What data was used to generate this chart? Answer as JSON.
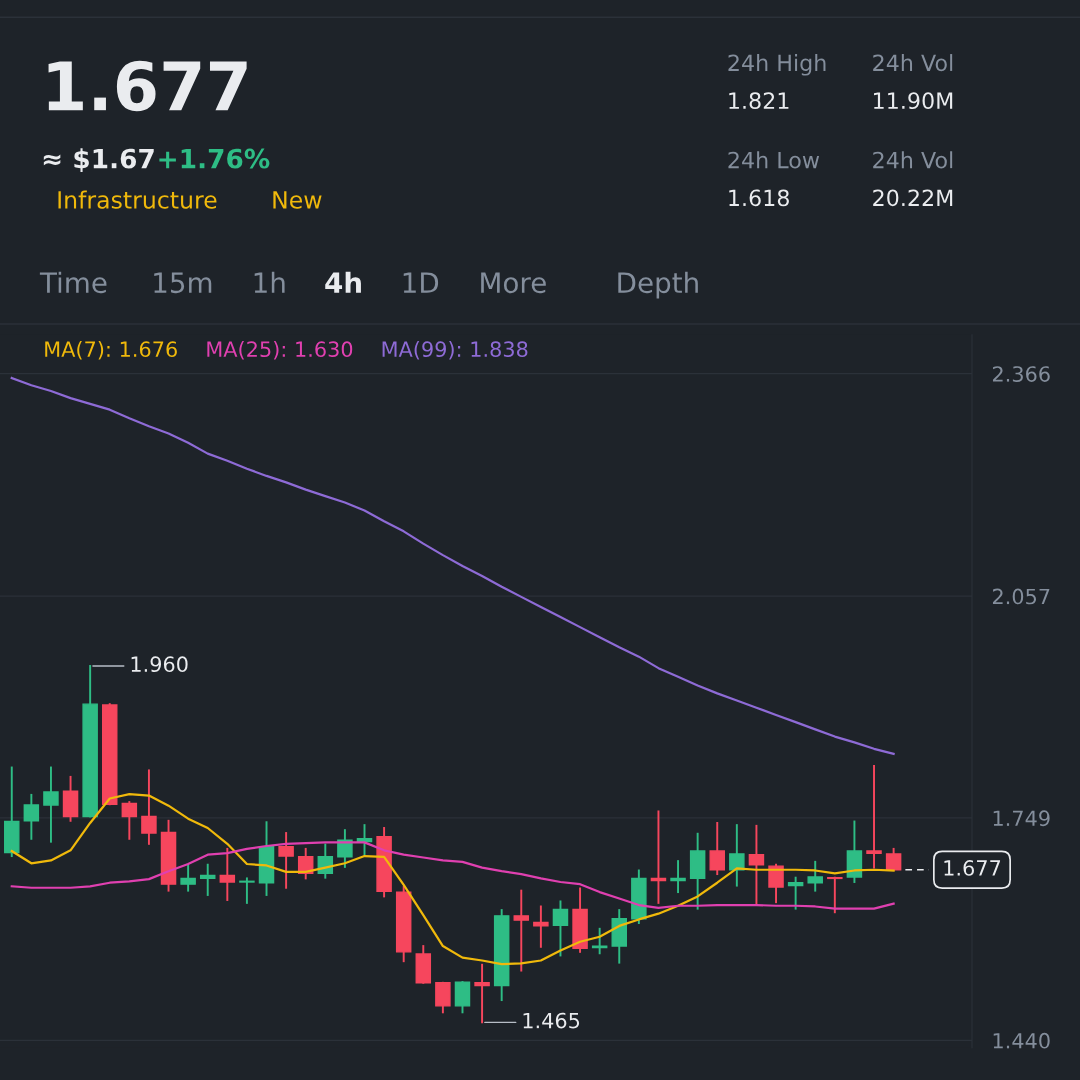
{
  "chart_data": {
    "type": "candlestick",
    "title": "1.677",
    "annotations": [
      "≈ $1.67",
      "+1.76%",
      "Infrastructure",
      "New",
      "24h High",
      "1.821",
      "24h Vol",
      "11.90M",
      "24h Low",
      "1.618",
      "24h Vol",
      "20.22M",
      "Time",
      "15m",
      "1h",
      "4h",
      "1D",
      "More",
      "Depth",
      "1.960",
      "1.465"
    ],
    "categories": [
      null,
      null,
      null,
      null,
      null,
      null,
      null,
      null,
      null,
      null,
      null,
      null,
      null,
      null,
      null,
      null,
      null,
      null,
      null,
      null,
      null,
      null,
      null,
      null,
      null,
      null,
      null,
      null,
      null,
      null,
      null,
      null,
      null,
      null,
      null,
      null,
      null,
      null,
      null,
      null,
      null,
      null,
      null,
      null,
      null,
      null
    ],
    "ohlc": [
      [
        1.701,
        1.819,
        1.696,
        1.744
      ],
      [
        1.745,
        1.781,
        1.72,
        1.767
      ],
      [
        1.767,
        1.819,
        1.716,
        1.785
      ],
      [
        1.786,
        1.806,
        1.745,
        1.751
      ],
      [
        1.751,
        1.96,
        1.751,
        1.907
      ],
      [
        1.906,
        1.907,
        1.768,
        1.768
      ],
      [
        1.769,
        1.771,
        1.72,
        1.751
      ],
      [
        1.751,
        1.815,
        1.713,
        1.728
      ],
      [
        1.729,
        1.745,
        1.648,
        1.657
      ],
      [
        1.657,
        1.684,
        1.648,
        1.665
      ],
      [
        1.665,
        1.684,
        1.642,
        1.669
      ],
      [
        1.669,
        1.706,
        1.635,
        1.66
      ],
      [
        1.66,
        1.665,
        1.631,
        1.661
      ],
      [
        1.659,
        1.743,
        1.642,
        1.709
      ],
      [
        1.709,
        1.728,
        1.652,
        1.696
      ],
      [
        1.695,
        1.706,
        1.665,
        1.672
      ],
      [
        1.672,
        1.712,
        1.666,
        1.695
      ],
      [
        1.695,
        1.732,
        1.681,
        1.718
      ],
      [
        1.716,
        1.739,
        1.698,
        1.72
      ],
      [
        1.723,
        1.735,
        1.64,
        1.647
      ],
      [
        1.646,
        1.653,
        1.55,
        1.563
      ],
      [
        1.56,
        1.571,
        1.52,
        1.52
      ],
      [
        1.52,
        1.52,
        1.479,
        1.488
      ],
      [
        1.488,
        1.521,
        1.479,
        1.521
      ],
      [
        1.52,
        1.545,
        1.465,
        1.516
      ],
      [
        1.516,
        1.621,
        1.496,
        1.613
      ],
      [
        1.613,
        1.648,
        1.537,
        1.607
      ],
      [
        1.604,
        1.626,
        1.57,
        1.599
      ],
      [
        1.6,
        1.633,
        1.558,
        1.622
      ],
      [
        1.622,
        1.651,
        1.563,
        1.568
      ],
      [
        1.569,
        1.595,
        1.561,
        1.571
      ],
      [
        1.571,
        1.621,
        1.548,
        1.609
      ],
      [
        1.609,
        1.676,
        1.603,
        1.665
      ],
      [
        1.665,
        1.758,
        1.631,
        1.662
      ],
      [
        1.662,
        1.689,
        1.646,
        1.665
      ],
      [
        1.665,
        1.727,
        1.623,
        1.703
      ],
      [
        1.703,
        1.742,
        1.671,
        1.677
      ],
      [
        1.677,
        1.739,
        1.655,
        1.699
      ],
      [
        1.698,
        1.738,
        1.628,
        1.684
      ],
      [
        1.682,
        1.684,
        1.632,
        1.653
      ],
      [
        1.655,
        1.666,
        1.623,
        1.659
      ],
      [
        1.659,
        1.688,
        1.648,
        1.667
      ],
      [
        1.666,
        1.666,
        1.618,
        1.665
      ],
      [
        1.667,
        1.744,
        1.66,
        1.703
      ],
      [
        1.703,
        1.821,
        1.68,
        1.7
      ],
      [
        1.699,
        1.706,
        1.677,
        1.677
      ]
    ],
    "colors": [
      "#2ebd85",
      "#2ebd85",
      "#2ebd85",
      "#f6465d",
      "#2ebd85",
      "#f6465d",
      "#f6465d",
      "#f6465d",
      "#f6465d",
      "#2ebd85",
      "#2ebd85",
      "#f6465d",
      "#2ebd85",
      "#2ebd85",
      "#f6465d",
      "#f6465d",
      "#2ebd85",
      "#2ebd85",
      "#2ebd85",
      "#f6465d",
      "#f6465d",
      "#f6465d",
      "#f6465d",
      "#2ebd85",
      "#f6465d",
      "#2ebd85",
      "#f6465d",
      "#f6465d",
      "#2ebd85",
      "#f6465d",
      "#2ebd85",
      "#2ebd85",
      "#2ebd85",
      "#f6465d",
      "#2ebd85",
      "#2ebd85",
      "#f6465d",
      "#2ebd85",
      "#f6465d",
      "#f6465d",
      "#2ebd85",
      "#2ebd85",
      "#f6465d",
      "#2ebd85",
      "#f6465d",
      "#f6465d"
    ],
    "series": [
      {
        "type": "line",
        "name": "MA(7): 1.676",
        "color": "#f0b90b",
        "values": [
          1.703,
          1.686,
          1.69,
          1.704,
          1.742,
          1.776,
          1.782,
          1.78,
          1.766,
          1.748,
          1.735,
          1.713,
          1.685,
          1.683,
          1.674,
          1.674,
          1.68,
          1.686,
          1.696,
          1.695,
          1.656,
          1.614,
          1.571,
          1.555,
          1.551,
          1.546,
          1.547,
          1.551,
          1.565,
          1.577,
          1.584,
          1.599,
          1.608,
          1.616,
          1.627,
          1.64,
          1.659,
          1.679,
          1.677,
          1.677,
          1.677,
          1.676,
          1.672,
          1.676,
          1.677,
          1.676
        ]
      },
      {
        "type": "line",
        "name": "MA(25): 1.630",
        "color": "#e040b0",
        "values": [
          1.654,
          1.652,
          1.652,
          1.652,
          1.654,
          1.659,
          1.661,
          1.664,
          1.675,
          1.685,
          1.698,
          1.7,
          1.706,
          1.71,
          1.713,
          1.714,
          1.715,
          1.715,
          1.715,
          1.704,
          1.698,
          1.694,
          1.69,
          1.688,
          1.68,
          1.675,
          1.671,
          1.665,
          1.66,
          1.657,
          1.646,
          1.637,
          1.628,
          1.624,
          1.627,
          1.627,
          1.628,
          1.628,
          1.628,
          1.627,
          1.627,
          1.626,
          1.623,
          1.623,
          1.623,
          1.63
        ]
      },
      {
        "type": "line",
        "name": "MA(99): 1.838",
        "color": "#8e6bd6",
        "values": [
          2.36,
          2.35,
          2.342,
          2.332,
          2.324,
          2.316,
          2.304,
          2.293,
          2.283,
          2.27,
          2.255,
          2.245,
          2.234,
          2.224,
          2.215,
          2.205,
          2.196,
          2.187,
          2.176,
          2.161,
          2.147,
          2.13,
          2.114,
          2.099,
          2.085,
          2.07,
          2.056,
          2.042,
          2.028,
          2.014,
          2.0,
          1.986,
          1.973,
          1.957,
          1.945,
          1.933,
          1.922,
          1.912,
          1.902,
          1.892,
          1.882,
          1.872,
          1.862,
          1.854,
          1.845,
          1.838
        ]
      }
    ],
    "ylim": [
      1.43,
      2.42
    ],
    "yticks": [
      {
        "value": 1.44,
        "label": "1.440"
      },
      1.749,
      2.057,
      2.366
    ],
    "grid": "y",
    "tick_labels": "y",
    "ref_lines": [
      {
        "axis": "y",
        "value": 1.677,
        "label": "1.677",
        "line_style": "dashed",
        "color": "#eaecef"
      }
    ]
  }
}
